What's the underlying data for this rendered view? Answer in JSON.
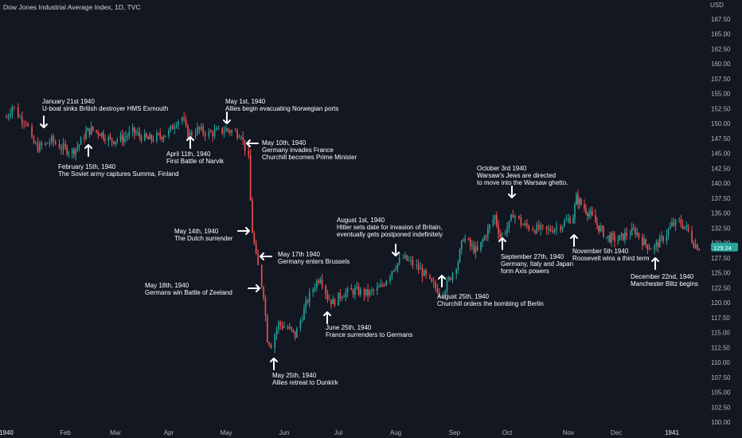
{
  "chart_title": "Dow Jones Industrial Average Index, 1D, TVC",
  "currency": "USD",
  "last_price": "129.24",
  "colors": {
    "background": "#131722",
    "up": "#26a69a",
    "down": "#ef5350",
    "text": "#d1d4dc",
    "annotation": "#ffffff",
    "badge": "#26a69a"
  },
  "chart_data": {
    "type": "candlestick",
    "title": "Dow Jones Industrial Average Index, 1D, TVC",
    "y_axis": {
      "unit": "USD",
      "range": [
        100.0,
        168.0
      ],
      "ticks": [
        "167.50",
        "165.00",
        "162.50",
        "160.00",
        "157.50",
        "155.00",
        "152.50",
        "150.00",
        "147.50",
        "145.00",
        "142.50",
        "140.00",
        "137.50",
        "135.00",
        "132.50",
        "130.00",
        "127.50",
        "125.00",
        "122.50",
        "120.00",
        "117.50",
        "115.00",
        "112.50",
        "110.00",
        "107.50",
        "105.00",
        "102.50",
        "100.00"
      ]
    },
    "x_axis": {
      "ticks": [
        {
          "label": "1940",
          "date": "1940-01-02",
          "bold": true
        },
        {
          "label": "Feb",
          "date": "1940-02-01",
          "bold": false
        },
        {
          "label": "Mar",
          "date": "1940-03-01",
          "bold": false
        },
        {
          "label": "Apr",
          "date": "1940-04-01",
          "bold": false
        },
        {
          "label": "May",
          "date": "1940-05-01",
          "bold": false
        },
        {
          "label": "Jun",
          "date": "1940-06-01",
          "bold": false
        },
        {
          "label": "Jul",
          "date": "1940-07-01",
          "bold": false
        },
        {
          "label": "Aug",
          "date": "1940-08-01",
          "bold": false
        },
        {
          "label": "Sep",
          "date": "1940-09-01",
          "bold": false
        },
        {
          "label": "Oct",
          "date": "1940-10-01",
          "bold": false
        },
        {
          "label": "Nov",
          "date": "1940-11-01",
          "bold": false
        },
        {
          "label": "Dec",
          "date": "1940-12-01",
          "bold": false
        },
        {
          "label": "1941",
          "date": "1941-01-02",
          "bold": true
        }
      ]
    },
    "series_path": [
      [
        "1940-01-02",
        151
      ],
      [
        "1940-01-05",
        153
      ],
      [
        "1940-01-09",
        151
      ],
      [
        "1940-01-12",
        150.5
      ],
      [
        "1940-01-15",
        147
      ],
      [
        "1940-01-18",
        146
      ],
      [
        "1940-01-22",
        146.5
      ],
      [
        "1940-01-25",
        147.2
      ],
      [
        "1940-01-30",
        146
      ],
      [
        "1940-02-05",
        145.3
      ],
      [
        "1940-02-09",
        146.5
      ],
      [
        "1940-02-13",
        148.5
      ],
      [
        "1940-02-16",
        149
      ],
      [
        "1940-02-21",
        148.5
      ],
      [
        "1940-02-27",
        147.2
      ],
      [
        "1940-03-05",
        147.5
      ],
      [
        "1940-03-11",
        148.6
      ],
      [
        "1940-03-15",
        148
      ],
      [
        "1940-03-20",
        147.3
      ],
      [
        "1940-03-26",
        147.8
      ],
      [
        "1940-04-01",
        148.5
      ],
      [
        "1940-04-05",
        150.5
      ],
      [
        "1940-04-08",
        151
      ],
      [
        "1940-04-11",
        148
      ],
      [
        "1940-04-16",
        149
      ],
      [
        "1940-04-22",
        148.3
      ],
      [
        "1940-04-26",
        148.6
      ],
      [
        "1940-05-01",
        149
      ],
      [
        "1940-05-06",
        148.5
      ],
      [
        "1940-05-09",
        148.4
      ],
      [
        "1940-05-10",
        147
      ],
      [
        "1940-05-13",
        144
      ],
      [
        "1940-05-14",
        137
      ],
      [
        "1940-05-15",
        132
      ],
      [
        "1940-05-17",
        127.5
      ],
      [
        "1940-05-18",
        126
      ],
      [
        "1940-05-21",
        121.5
      ],
      [
        "1940-05-23",
        114
      ],
      [
        "1940-05-25",
        113
      ],
      [
        "1940-05-29",
        116.5
      ],
      [
        "1940-06-04",
        115.5
      ],
      [
        "1940-06-07",
        114.5
      ],
      [
        "1940-06-10",
        117
      ],
      [
        "1940-06-14",
        120.5
      ],
      [
        "1940-06-18",
        123
      ],
      [
        "1940-06-21",
        124.5
      ],
      [
        "1940-06-25",
        121
      ],
      [
        "1940-06-28",
        120
      ],
      [
        "1940-07-03",
        121.5
      ],
      [
        "1940-07-10",
        122
      ],
      [
        "1940-07-17",
        121.5
      ],
      [
        "1940-07-24",
        122.5
      ],
      [
        "1940-07-31",
        126
      ],
      [
        "1940-08-05",
        127.5
      ],
      [
        "1940-08-09",
        126.7
      ],
      [
        "1940-08-14",
        125.5
      ],
      [
        "1940-08-20",
        123
      ],
      [
        "1940-08-24",
        122
      ],
      [
        "1940-08-27",
        122.5
      ],
      [
        "1940-09-03",
        127
      ],
      [
        "1940-09-06",
        131
      ],
      [
        "1940-09-10",
        129.5
      ],
      [
        "1940-09-14",
        128.5
      ],
      [
        "1940-09-18",
        131
      ],
      [
        "1940-09-24",
        134.5
      ],
      [
        "1940-09-27",
        131
      ],
      [
        "1940-10-02",
        133
      ],
      [
        "1940-10-04",
        135
      ],
      [
        "1940-10-09",
        133
      ],
      [
        "1940-10-14",
        132.5
      ],
      [
        "1940-10-21",
        132
      ],
      [
        "1940-10-28",
        133
      ],
      [
        "1940-11-04",
        134.5
      ],
      [
        "1940-11-06",
        137.5
      ],
      [
        "1940-11-09",
        136.5
      ],
      [
        "1940-11-14",
        135
      ],
      [
        "1940-11-19",
        133
      ],
      [
        "1940-11-25",
        131
      ],
      [
        "1940-12-02",
        130.5
      ],
      [
        "1940-12-07",
        131.5
      ],
      [
        "1940-12-12",
        132
      ],
      [
        "1940-12-17",
        130
      ],
      [
        "1940-12-22",
        129
      ],
      [
        "1940-12-27",
        130.5
      ],
      [
        "1941-01-02",
        133
      ],
      [
        "1941-01-06",
        133.5
      ],
      [
        "1941-01-10",
        132.5
      ],
      [
        "1941-01-14",
        130
      ],
      [
        "1941-01-17",
        129.24
      ]
    ]
  },
  "annotations": [
    {
      "date_label": "January 21st 1940",
      "lines": [
        "January 21st 1940",
        "U-boat sinks British destroyer HMS Exmouth"
      ],
      "arrow": "down"
    },
    {
      "date_label": "February 15th, 1940",
      "lines": [
        "February 15th, 1940",
        "The Soviet army captures Summa, Finland"
      ],
      "arrow": "up"
    },
    {
      "date_label": "April 11th, 1940",
      "lines": [
        "April 11th, 1940",
        "First Battle of Narvik"
      ],
      "arrow": "up"
    },
    {
      "date_label": "May 1st, 1940",
      "lines": [
        "May 1st, 1940",
        "Allies begin evacuating Norwegian ports"
      ],
      "arrow": "down"
    },
    {
      "date_label": "May 10th, 1940",
      "lines": [
        "May 10th, 1940",
        "Germany invades France",
        "Churchill becomes Prime Minister"
      ],
      "arrow": "left"
    },
    {
      "date_label": "May 14th, 1940",
      "lines": [
        "May 14th, 1940",
        "The Dutch surrender"
      ],
      "arrow": "right"
    },
    {
      "date_label": "May 17th 1940",
      "lines": [
        "May 17th 1940",
        "Germany enters Brussels"
      ],
      "arrow": "left"
    },
    {
      "date_label": "May 18th, 1940",
      "lines": [
        "May 18th, 1940",
        "Germans win Battle of Zeeland"
      ],
      "arrow": "right"
    },
    {
      "date_label": "May 25th, 1940",
      "lines": [
        "May 25th, 1940",
        "Allies retreat to Dunkirk"
      ],
      "arrow": "up"
    },
    {
      "date_label": "June 25th, 1940",
      "lines": [
        "June 25th, 1940",
        "France surrenders to Germans"
      ],
      "arrow": "up"
    },
    {
      "date_label": "August 1st, 1940",
      "lines": [
        "August 1st, 1940",
        "Hitler sets date for invasion of Britain,",
        "eventually gets postponed indefinitely"
      ],
      "arrow": "down"
    },
    {
      "date_label": "August 25th, 1940",
      "lines": [
        "August 25th, 1940",
        "Churchill orders the bombing of Berlin"
      ],
      "arrow": "up"
    },
    {
      "date_label": "October 3rd 1940",
      "lines": [
        "October 3rd 1940",
        "Warsaw's Jews are directed",
        "to move into the Warsaw ghetto."
      ],
      "arrow": "down"
    },
    {
      "date_label": "September 27th, 1940",
      "lines": [
        "September 27th, 1940",
        "Germany, Italy and Japan",
        "form Axis powers"
      ],
      "arrow": "up"
    },
    {
      "date_label": "November 5th 1940",
      "lines": [
        "November 5th 1940",
        "Roosevelt wins a third term"
      ],
      "arrow": "up"
    },
    {
      "date_label": "December 22nd, 1940",
      "lines": [
        "December 22nd, 1940",
        "Manchester Blitz begins"
      ],
      "arrow": "up"
    }
  ]
}
